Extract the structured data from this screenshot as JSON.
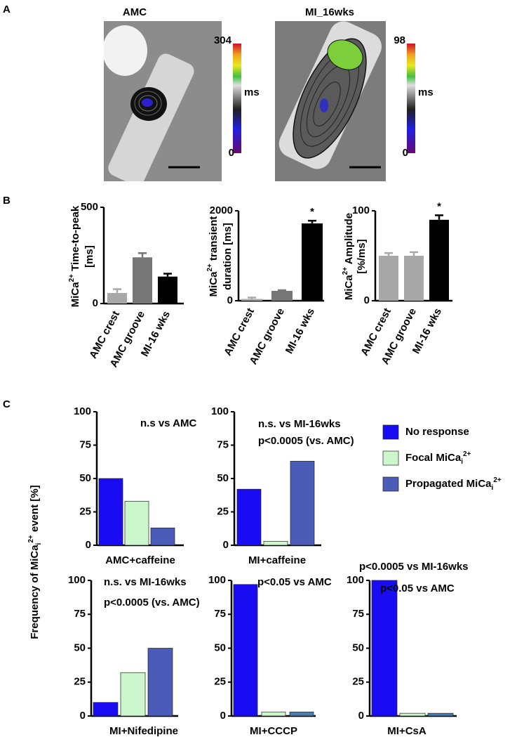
{
  "panel_labels": [
    "A",
    "B",
    "C"
  ],
  "images": [
    {
      "title": "AMC",
      "colorbar": {
        "lim": [
          0,
          304
        ],
        "ticks": [
          0,
          304
        ],
        "unit": "ms"
      }
    },
    {
      "title": "MI_16wks",
      "colorbar": {
        "lim": [
          0,
          98
        ],
        "ticks": [
          0,
          98
        ],
        "unit": "ms"
      }
    }
  ],
  "chart_data": [
    {
      "type": "bar",
      "categories": [
        "AMC crest",
        "AMC groove",
        "MI-16 wks"
      ],
      "values": [
        55,
        240,
        140
      ],
      "errors": [
        20,
        22,
        15
      ],
      "colors": [
        "#a8a8a8",
        "#767676",
        "#000000"
      ],
      "ylim": [
        0,
        500
      ],
      "yticks": [
        0,
        500
      ],
      "ylabel_lines": [
        [
          {
            "text": "MiCa"
          },
          {
            "text": "2+",
            "style": "sup"
          },
          {
            "text": " Time-to-peak"
          }
        ],
        [
          {
            "text": "[ms]"
          }
        ]
      ]
    },
    {
      "type": "bar",
      "categories": [
        "AMC crest",
        "AMC groove",
        "MI-16 wks"
      ],
      "values": [
        40,
        220,
        1720
      ],
      "errors": [
        30,
        15,
        60
      ],
      "colors": [
        "#a8a8a8",
        "#767676",
        "#000000"
      ],
      "ylim": [
        0,
        2000
      ],
      "yticks": [
        0,
        2000
      ],
      "markers": [
        null,
        null,
        "*"
      ],
      "ylabel_lines": [
        [
          {
            "text": "MiCa"
          },
          {
            "text": "2+",
            "style": "sup"
          },
          {
            "text": " transient"
          }
        ],
        [
          {
            "text": "duration [ms]"
          }
        ]
      ]
    },
    {
      "type": "bar",
      "categories": [
        "AMC crest",
        "AMC groove",
        "MI-16 wks"
      ],
      "values": [
        50,
        50,
        90
      ],
      "errors": [
        3,
        4,
        5
      ],
      "colors": [
        "#a8a8a8",
        "#a8a8a8",
        "#000000"
      ],
      "ylim": [
        0,
        100
      ],
      "yticks": [
        0,
        100
      ],
      "markers": [
        null,
        null,
        "*"
      ],
      "ylabel_lines": [
        [
          {
            "text": "MiCa"
          },
          {
            "text": "2+",
            "style": "sup"
          },
          {
            "text": " Amplitude"
          }
        ],
        [
          {
            "text": "[%/ms]"
          }
        ]
      ]
    },
    {
      "type": "bar",
      "values": [
        50,
        33,
        13
      ],
      "colors": [
        "#1a0cf2",
        "#ccf6cc",
        "#4a5cb8"
      ],
      "ylim": [
        0,
        100
      ],
      "yticks": [
        0,
        25,
        50,
        75,
        100
      ],
      "xlabel": "AMC+caffeine",
      "notes": [
        "n.s vs AMC"
      ]
    },
    {
      "type": "bar",
      "values": [
        42,
        3,
        63
      ],
      "colors": [
        "#1a0cf2",
        "#ccf6cc",
        "#4a5cb8"
      ],
      "ylim": [
        0,
        100
      ],
      "yticks": [
        0,
        25,
        50,
        75,
        100
      ],
      "xlabel": "MI+caffeine",
      "notes": [
        "n.s. vs MI-16wks",
        "p<0.0005 (vs. AMC)"
      ]
    },
    {
      "type": "bar",
      "values": [
        10,
        32,
        50
      ],
      "colors": [
        "#1a0cf2",
        "#ccf6cc",
        "#4a5cb8"
      ],
      "ylim": [
        0,
        100
      ],
      "yticks": [
        0,
        25,
        50,
        75,
        100
      ],
      "xlabel": "MI+Nifedipine",
      "notes": [
        "n.s. vs MI-16wks",
        "p<0.0005 (vs. AMC)"
      ]
    },
    {
      "type": "bar",
      "values": [
        97,
        3,
        3
      ],
      "colors": [
        "#1a0cf2",
        "#ccf6cc",
        "#4a7cb0"
      ],
      "ylim": [
        0,
        100
      ],
      "yticks": [
        0,
        25,
        50,
        75,
        100
      ],
      "xlabel": "MI+CCCP",
      "notes": [
        "p<0.05 vs AMC"
      ]
    },
    {
      "type": "bar",
      "values": [
        100,
        2,
        2
      ],
      "colors": [
        "#1a0cf2",
        "#ccf6cc",
        "#4a7cb0"
      ],
      "ylim": [
        0,
        100
      ],
      "yticks": [
        0,
        25,
        50,
        75,
        100
      ],
      "xlabel": "MI+CsA",
      "notes": [
        "p<0.0005 vs MI-16wks",
        "p<0.05 vs AMC"
      ]
    }
  ],
  "c_ylabel": [
    {
      "text": "Frequency of MiCa"
    },
    {
      "text": "i",
      "style": "sub"
    },
    {
      "text": "2+",
      "style": "sup"
    },
    {
      "text": " event   [%]"
    }
  ],
  "c_legend": [
    {
      "name": [
        {
          "text": "No response"
        }
      ],
      "color": "#1a0cf2"
    },
    {
      "name": [
        {
          "text": "Focal MiCa"
        },
        {
          "text": "i",
          "style": "sub"
        },
        {
          "text": "2+",
          "style": "sup"
        }
      ],
      "color": "#ccf6cc"
    },
    {
      "name": [
        {
          "text": "Propagated MiCa"
        },
        {
          "text": "i",
          "style": "sub"
        },
        {
          "text": "2+",
          "style": "sup"
        }
      ],
      "color": "#4a5cb8"
    }
  ]
}
